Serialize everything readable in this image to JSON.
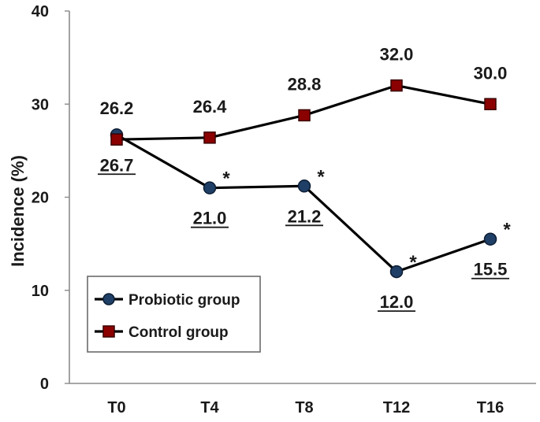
{
  "chart_data": {
    "type": "line",
    "title": "",
    "xlabel": "",
    "ylabel": "Incidence (%)",
    "categories": [
      "T0",
      "T4",
      "T8",
      "T12",
      "T16"
    ],
    "ylim": [
      0,
      40
    ],
    "yticks": [
      "0",
      "10",
      "20",
      "30",
      "40"
    ],
    "grid": false,
    "legend_position": "bottom-left",
    "series": [
      {
        "name": "Probiotic group",
        "values": [
          26.7,
          21.0,
          21.2,
          12.0,
          15.5
        ],
        "labels": [
          "26.7",
          "21.0",
          "21.2",
          "12.0",
          "15.5"
        ],
        "significance": [
          "",
          "*",
          "*",
          "*",
          "*"
        ],
        "marker": "circle",
        "line_color": "#000000",
        "marker_color": "#1f3f66"
      },
      {
        "name": "Control group",
        "values": [
          26.2,
          26.4,
          28.8,
          32.0,
          30.0
        ],
        "labels": [
          "26.2",
          "26.4",
          "28.8",
          "32.0",
          "30.0"
        ],
        "marker": "square",
        "line_color": "#000000",
        "marker_color": "#8b0000"
      }
    ]
  }
}
